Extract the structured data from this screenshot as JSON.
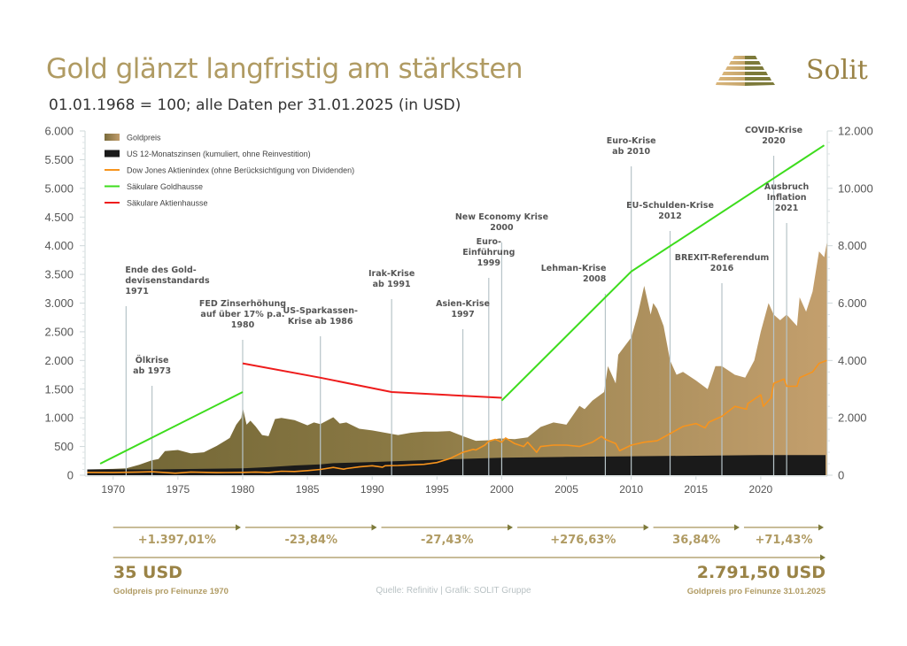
{
  "header": {
    "title": "Gold glänzt langfristig am stärksten",
    "subtitle": "01.01.1968 = 100; alle Daten per 31.01.2025 (in USD)",
    "brand": "Solit"
  },
  "colors": {
    "gold_dark": "#7a6c3c",
    "gold_light": "#c19d6c",
    "interest": "#1a1a1a",
    "dow": "#f7941d",
    "gold_hausse": "#3ddc1d",
    "stock_hausse": "#ee1c1c",
    "event_line": "#b7c4c8",
    "accent": "#b09b63"
  },
  "chart_data": {
    "type": "area",
    "title": "Gold glänzt langfristig am stärksten",
    "subtitle": "01.01.1968 = 100; alle Daten per 31.01.2025 (in USD)",
    "xlabel": "",
    "ylabel_left": "",
    "ylabel_right": "",
    "xlim": [
      1968,
      2025
    ],
    "ylim_left": [
      0,
      6000
    ],
    "ylim_right": [
      0,
      12000
    ],
    "x_ticks": [
      "1970",
      "1975",
      "1980",
      "1985",
      "1990",
      "1995",
      "2000",
      "2005",
      "2010",
      "2015",
      "2020"
    ],
    "x_tick_values": [
      1970,
      1975,
      1980,
      1985,
      1990,
      1995,
      2000,
      2005,
      2010,
      2015,
      2020
    ],
    "y_ticks_left": [
      "0",
      "500",
      "1.000",
      "1.500",
      "2.000",
      "2.500",
      "3.000",
      "3.500",
      "4.000",
      "4.500",
      "5.000",
      "5.500",
      "6.000"
    ],
    "y_tick_values_left": [
      0,
      500,
      1000,
      1500,
      2000,
      2500,
      3000,
      3500,
      4000,
      4500,
      5000,
      5500,
      6000
    ],
    "y_ticks_right": [
      "0",
      "2.000",
      "4.000",
      "6.000",
      "8.000",
      "10.000",
      "12.000"
    ],
    "y_tick_values_right": [
      0,
      2000,
      4000,
      6000,
      8000,
      10000,
      12000
    ],
    "grid": false,
    "legend_position": "top-left",
    "legend": [
      {
        "label": "Goldpreis",
        "type": "area"
      },
      {
        "label": "US 12-Monatszinsen (kumuliert, ohne Reinvestition)",
        "type": "area"
      },
      {
        "label": "Dow Jones Aktienindex (ohne Berücksichtigung von Dividenden)",
        "type": "line"
      },
      {
        "label": "Säkulare Goldhausse",
        "type": "line"
      },
      {
        "label": "Säkulare Aktienhausse",
        "type": "line"
      }
    ],
    "series": [
      {
        "name": "Goldpreis",
        "axis": "left",
        "type": "area",
        "x": [
          1968,
          1970,
          1971,
          1972,
          1973,
          1973.5,
          1974,
          1975,
          1976,
          1977,
          1978,
          1979,
          1979.5,
          1979.9,
          1980.0,
          1980.3,
          1980.6,
          1981,
          1981.5,
          1982,
          1982.5,
          1983,
          1984,
          1985,
          1985.5,
          1986,
          1987,
          1987.5,
          1988,
          1989,
          1990,
          1991,
          1992,
          1993,
          1994,
          1995,
          1996,
          1997,
          1998,
          1999,
          1999.8,
          2000,
          2001,
          2002,
          2003,
          2004,
          2005,
          2006,
          2006.4,
          2007,
          2007.9,
          2008.2,
          2008.8,
          2009,
          2009.5,
          2010,
          2010.5,
          2011,
          2011.5,
          2011.7,
          2012,
          2012.5,
          2013,
          2013.5,
          2014,
          2015,
          2015.9,
          2016.5,
          2017,
          2018,
          2018.8,
          2019.5,
          2020,
          2020.6,
          2021,
          2021.5,
          2022,
          2022.8,
          2023,
          2023.5,
          2024,
          2024.5,
          2024.9,
          2025.1
        ],
        "values": [
          100,
          110,
          120,
          180,
          260,
          280,
          420,
          440,
          380,
          400,
          510,
          650,
          880,
          1000,
          1180,
          880,
          950,
          850,
          700,
          680,
          980,
          1000,
          960,
          870,
          920,
          890,
          1010,
          900,
          920,
          810,
          780,
          740,
          700,
          740,
          760,
          760,
          770,
          680,
          600,
          610,
          640,
          640,
          630,
          660,
          840,
          920,
          880,
          1210,
          1150,
          1300,
          1450,
          1900,
          1600,
          2100,
          2250,
          2400,
          2800,
          3300,
          2800,
          3000,
          2900,
          2600,
          2000,
          1750,
          1800,
          1650,
          1500,
          1900,
          1900,
          1750,
          1700,
          2000,
          2500,
          3000,
          2800,
          2700,
          2800,
          2600,
          3100,
          2850,
          3200,
          3900,
          3800,
          4050
        ]
      },
      {
        "name": "US 12-Monatszinsen (kumuliert, ohne Reinvestition)",
        "axis": "left",
        "type": "area",
        "x": [
          1968,
          1973,
          1980,
          1982,
          1984,
          1986,
          1987,
          1990,
          1995,
          2000,
          2002,
          2005,
          2010,
          2015,
          2020,
          2025
        ],
        "values": [
          100,
          100,
          120,
          140,
          170,
          190,
          210,
          230,
          270,
          305,
          310,
          320,
          330,
          340,
          350,
          350
        ]
      },
      {
        "name": "Dow Jones Aktienindex (ohne Berücksichtigung von Dividenden)",
        "axis": "right",
        "type": "line",
        "x": [
          1968,
          1970,
          1972,
          1973,
          1974,
          1974.8,
          1976,
          1978,
          1980,
          1981,
          1982,
          1982.6,
          1983,
          1984,
          1985,
          1986,
          1987,
          1987.8,
          1988,
          1989,
          1990,
          1990.8,
          1991,
          1992,
          1993,
          1994,
          1995,
          1996,
          1997,
          1997.8,
          1998,
          1998.7,
          1999,
          1999.5,
          2000,
          2000.3,
          2001,
          2001.7,
          2002,
          2002.7,
          2003,
          2004,
          2005,
          2006,
          2007,
          2007.7,
          2008,
          2008.8,
          2009.1,
          2010,
          2011,
          2012,
          2013,
          2014,
          2015,
          2015.7,
          2016,
          2017,
          2018,
          2018.9,
          2019,
          2020,
          2020.2,
          2020.8,
          2021,
          2021.8,
          2022,
          2022.8,
          2023,
          2024,
          2024.5,
          2025.1
        ],
        "values": [
          100,
          95,
          110,
          120,
          95,
          70,
          110,
          90,
          100,
          110,
          95,
          120,
          140,
          130,
          160,
          200,
          270,
          210,
          230,
          290,
          330,
          280,
          330,
          340,
          360,
          380,
          440,
          580,
          800,
          900,
          880,
          1050,
          1180,
          1250,
          1150,
          1300,
          1100,
          1000,
          1150,
          800,
          1000,
          1050,
          1050,
          1000,
          1150,
          1350,
          1250,
          1100,
          850,
          1050,
          1150,
          1200,
          1450,
          1700,
          1800,
          1650,
          1850,
          2050,
          2400,
          2300,
          2500,
          2800,
          2400,
          2700,
          3200,
          3350,
          3100,
          3100,
          3400,
          3600,
          3900,
          4000
        ]
      },
      {
        "name": "Säkulare Goldhausse",
        "axis": "left",
        "type": "line",
        "segments": [
          {
            "x": [
              1969,
              1980
            ],
            "values": [
              200,
              1450
            ]
          },
          {
            "x": [
              2000,
              2010,
              2024.9
            ],
            "values": [
              1300,
              3550,
              5750
            ]
          }
        ]
      },
      {
        "name": "Säkulare Aktienhausse",
        "axis": "left",
        "type": "line",
        "x": [
          1980,
          1986,
          1991.5,
          2000
        ],
        "values": [
          1950,
          1700,
          1450,
          1350
        ]
      }
    ],
    "annotations": [
      {
        "year": 1971,
        "lines": [
          "Ende des Gold-",
          "devisenstandards",
          "1971"
        ],
        "align": "start"
      },
      {
        "year": 1973,
        "lines": [
          "Ölkrise",
          "ab 1973"
        ],
        "align": "middle"
      },
      {
        "year": 1980,
        "lines": [
          "FED Zinserhöhung",
          "auf über 17% p.a.",
          "1980"
        ],
        "align": "middle"
      },
      {
        "year": 1986,
        "lines": [
          "US-Sparkassen-",
          "Krise ab 1986"
        ],
        "align": "middle"
      },
      {
        "year": 1991.5,
        "lines": [
          "Irak-Krise",
          "ab 1991"
        ],
        "align": "middle"
      },
      {
        "year": 1997,
        "lines": [
          "Asien-Krise",
          "1997"
        ],
        "align": "middle"
      },
      {
        "year": 1999,
        "lines": [
          "Euro-",
          "Einführung",
          "1999"
        ],
        "align": "middle"
      },
      {
        "year": 2000,
        "lines": [
          "New Economy Krise",
          "2000"
        ],
        "align": "middle"
      },
      {
        "year": 2008,
        "lines": [
          "Lehman-Krise",
          "2008"
        ],
        "align": "end"
      },
      {
        "year": 2010,
        "lines": [
          "Euro-Krise",
          "ab 2010"
        ],
        "align": "middle"
      },
      {
        "year": 2013,
        "lines": [
          "EU-Schulden-Krise",
          "2012"
        ],
        "align": "middle"
      },
      {
        "year": 2017,
        "lines": [
          "BREXIT-Referendum",
          "2016"
        ],
        "align": "middle"
      },
      {
        "year": 2021,
        "lines": [
          "COVID-Krise",
          "2020"
        ],
        "align": "middle"
      },
      {
        "year": 2022,
        "lines": [
          "Ausbruch",
          "Inflation",
          "2021"
        ],
        "align": "middle"
      }
    ]
  },
  "periods": [
    {
      "from": 1970,
      "to": 1980,
      "change": "+1.397,01%"
    },
    {
      "from": 1980,
      "to": 1990.5,
      "change": "-23,84%"
    },
    {
      "from": 1990.5,
      "to": 2001,
      "change": "-27,43%"
    },
    {
      "from": 2001,
      "to": 2011.5,
      "change": "+276,63%"
    },
    {
      "from": 2011.5,
      "to": 2018.5,
      "change": "36,84%"
    },
    {
      "from": 2018.5,
      "to": 2025,
      "change": "+71,43%"
    }
  ],
  "footer": {
    "start_value": "35 USD",
    "start_caption": "Goldpreis pro Feinunze 1970",
    "end_value": "2.791,50 USD",
    "end_caption": "Goldpreis pro Feinunze 31.01.2025",
    "source": "Quelle: Refinitiv | Grafik: SOLIT Gruppe"
  }
}
